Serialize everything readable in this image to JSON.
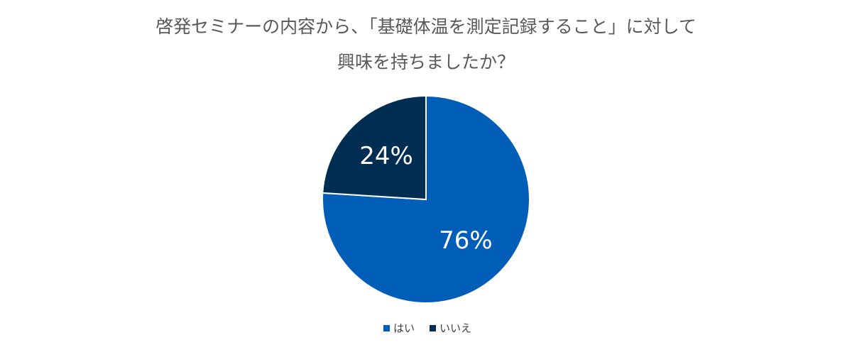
{
  "chart_data": {
    "type": "pie",
    "title_lines": [
      "啓発セミナーの内容から、「基礎体温を測定記録すること」に対して",
      "興味を持ちましたか？"
    ],
    "series": [
      {
        "name": "はい",
        "value": 76,
        "label": "76%",
        "color": "#005EB8"
      },
      {
        "name": "いいえ",
        "value": 24,
        "label": "24%",
        "color": "#002D52"
      }
    ],
    "start": "12 o'clock",
    "direction": "clockwise",
    "legend_position": "bottom"
  }
}
